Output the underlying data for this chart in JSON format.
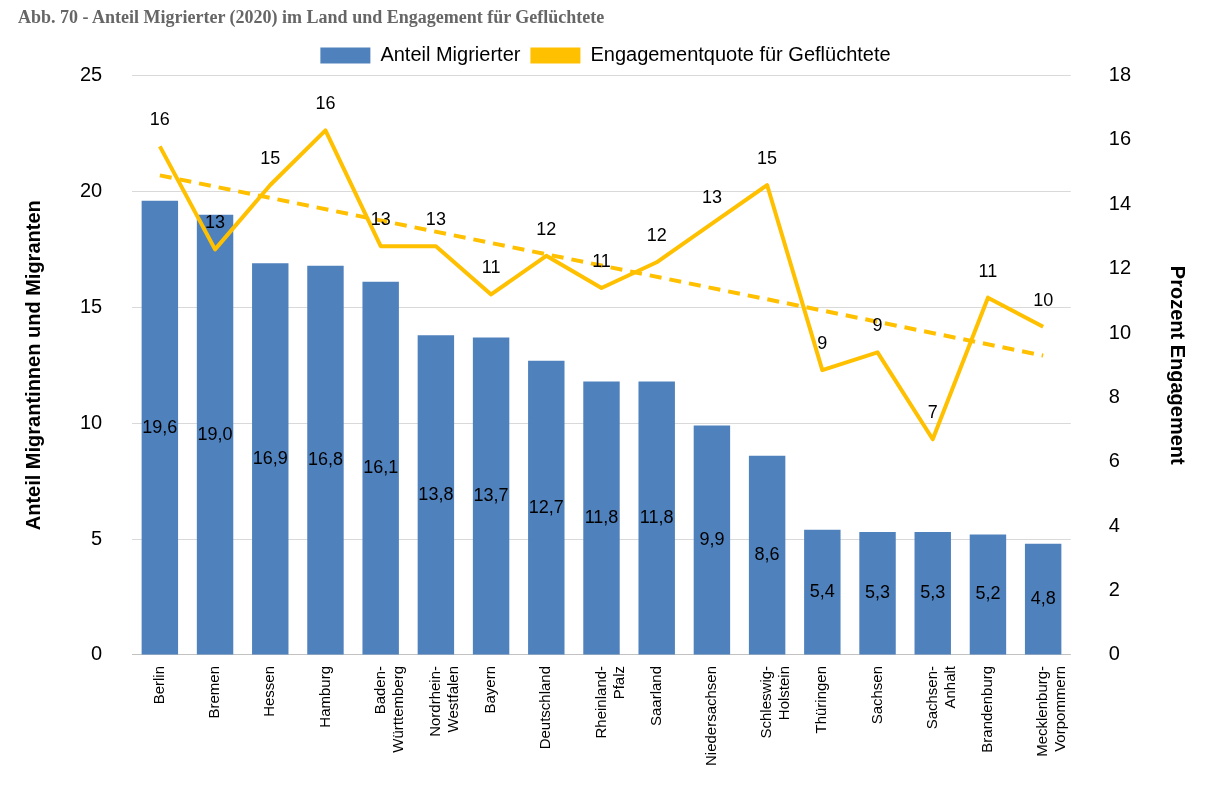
{
  "chart_data": {
    "type": "bar",
    "title": "Abb. 70 - Anteil Migrierter (2020) im Land und Engagement für Geflüchtete",
    "ylabel": "Anteil Migrantinnen und Migranten",
    "y2label": "Prozent Engagement",
    "categories": [
      "Berlin",
      "Bremen",
      "Hessen",
      "Hamburg",
      "Baden-Württemberg",
      "Nordrhein-Westfalen",
      "Bayern",
      "Deutschland",
      "Rheinland-Pfalz",
      "Saarland",
      "Niedersachsen",
      "Schleswig-Holstein",
      "Thüringen",
      "Sachsen",
      "Sachsen-Anhalt",
      "Brandenburg",
      "Mecklenburg-Vorpommern"
    ],
    "series": [
      {
        "name": "Anteil Migrierter",
        "color": "#4f81bd",
        "values": [
          19.6,
          19.0,
          16.9,
          16.8,
          16.1,
          13.8,
          13.7,
          12.7,
          11.8,
          11.8,
          9.9,
          8.6,
          5.4,
          5.3,
          5.3,
          5.2,
          4.8
        ],
        "value_labels": [
          "19,6",
          "19,0",
          "16,9",
          "16,8",
          "16,1",
          "13,8",
          "13,7",
          "12,7",
          "11,8",
          "11,8",
          "9,9",
          "8,6",
          "5,4",
          "5,3",
          "5,3",
          "5,2",
          "4,8"
        ]
      },
      {
        "name": "Engagementquote für Geflüchtete",
        "type": "line",
        "axis": "y2",
        "color": "#ffc000",
        "values": [
          15.8,
          12.6,
          14.6,
          16.3,
          12.7,
          12.7,
          11.2,
          12.4,
          11.4,
          12.2,
          13.4,
          14.6,
          8.85,
          9.4,
          6.7,
          11.1,
          10.2
        ],
        "value_labels": [
          "16",
          "13",
          "15",
          "16",
          "13",
          "13",
          "11",
          "12",
          "11",
          "12",
          "13",
          "15",
          "9",
          "9",
          "7",
          "11",
          "10"
        ]
      },
      {
        "type": "line",
        "axis": "y2",
        "color": "#ffc000",
        "line_style": "dashed",
        "x": [
          "Berlin",
          "Mecklenburg-Vorpommern"
        ],
        "values": [
          14.9,
          9.3
        ]
      }
    ],
    "ylim": [
      0,
      25
    ],
    "yticks": [
      0,
      5,
      10,
      15,
      20,
      25
    ],
    "y2lim": [
      0,
      18
    ],
    "y2ticks": [
      0,
      2,
      4,
      6,
      8,
      10,
      12,
      14,
      16,
      18
    ],
    "grid": "y",
    "legend": "top"
  }
}
